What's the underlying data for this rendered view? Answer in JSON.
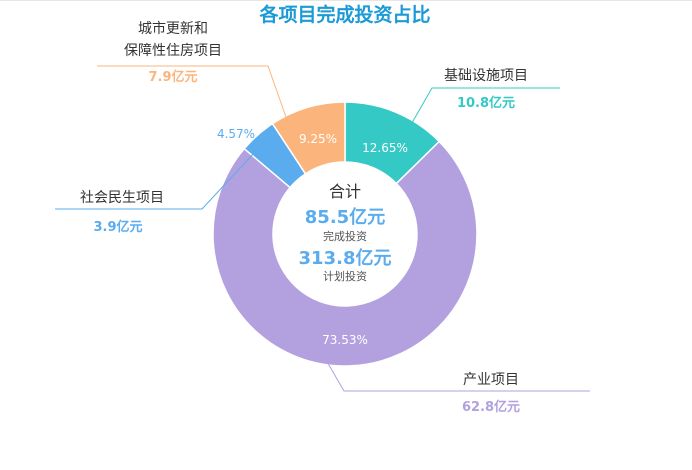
{
  "chart_data": {
    "type": "pie",
    "title": "各项目完成投资占比",
    "center": {
      "label": "合计",
      "completed_value": "85.5亿元",
      "completed_label": "完成投资",
      "planned_value": "313.8亿元",
      "planned_label": "计划投资"
    },
    "slices": [
      {
        "name": "基础设施项目",
        "value": 10.8,
        "value_label": "10.8亿元",
        "percent": 12.65,
        "percent_label": "12.65%",
        "color": "#34c9c5"
      },
      {
        "name": "产业项目",
        "value": 62.8,
        "value_label": "62.8亿元",
        "percent": 73.53,
        "percent_label": "73.53%",
        "color": "#b3a1df"
      },
      {
        "name": "社会民生项目",
        "value": 3.9,
        "value_label": "3.9亿元",
        "percent": 4.57,
        "percent_label": "4.57%",
        "color": "#5aacee"
      },
      {
        "name": "城市更新和保障性住房项目",
        "name_lines": [
          "城市更新和",
          "保障性住房项目"
        ],
        "value": 7.9,
        "value_label": "7.9亿元",
        "percent": 9.25,
        "percent_label": "9.25%",
        "color": "#fbb57c"
      }
    ],
    "colors": {
      "title": "#1a9ad6",
      "center_value": "#5aacee",
      "text": "#333333",
      "muted": "#555555"
    }
  }
}
